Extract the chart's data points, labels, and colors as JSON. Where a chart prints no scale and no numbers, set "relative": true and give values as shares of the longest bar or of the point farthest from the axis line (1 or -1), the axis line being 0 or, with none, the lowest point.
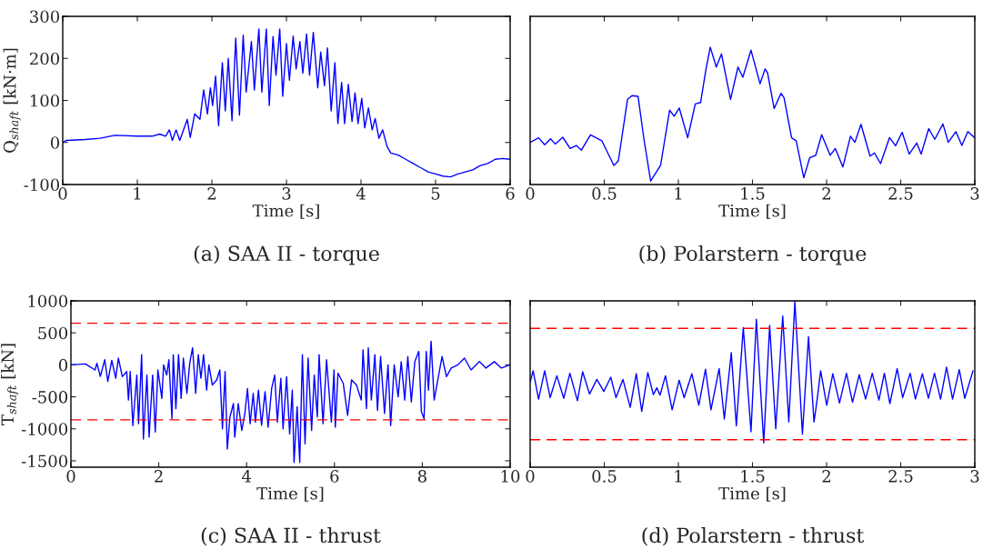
{
  "chart_data": [
    {
      "type": "line",
      "title": "(a) SAA II - torque",
      "xlabel": "Time [s]",
      "ylabel": "Q$_{shaft}$ [kN·m]",
      "xlim": [
        0,
        6
      ],
      "ylim": [
        -100,
        300
      ],
      "xticks": [
        0,
        1,
        2,
        3,
        4,
        5,
        6
      ],
      "yticks": [
        -100,
        0,
        100,
        200,
        300
      ],
      "grid": false,
      "legend": false,
      "series": [
        {
          "color": "#0000ff",
          "x": [
            0,
            0.05,
            0.3,
            0.5,
            0.7,
            1.0,
            1.2,
            1.3,
            1.38,
            1.43,
            1.47,
            1.52,
            1.57,
            1.67,
            1.71,
            1.77,
            1.84,
            1.89,
            1.94,
            1.98,
            2.01,
            2.05,
            2.09,
            2.14,
            2.18,
            2.22,
            2.27,
            2.32,
            2.37,
            2.42,
            2.46,
            2.53,
            2.57,
            2.63,
            2.67,
            2.73,
            2.77,
            2.82,
            2.86,
            2.91,
            2.95,
            3.0,
            3.04,
            3.09,
            3.13,
            3.18,
            3.22,
            3.27,
            3.31,
            3.36,
            3.42,
            3.46,
            3.51,
            3.55,
            3.6,
            3.65,
            3.69,
            3.74,
            3.78,
            3.83,
            3.88,
            3.92,
            3.96,
            4.01,
            4.05,
            4.1,
            4.15,
            4.19,
            4.24,
            4.29,
            4.35,
            4.4,
            4.5,
            4.6,
            4.7,
            4.8,
            4.9,
            5.0,
            5.1,
            5.2,
            5.3,
            5.4,
            5.5,
            5.6,
            5.7,
            5.8,
            5.9,
            6.0
          ],
          "values": [
            0,
            5,
            7,
            10,
            17,
            15,
            15,
            20,
            15,
            30,
            5,
            30,
            5,
            55,
            12,
            68,
            55,
            125,
            68,
            130,
            88,
            158,
            40,
            190,
            75,
            200,
            52,
            248,
            65,
            255,
            120,
            240,
            125,
            270,
            120,
            270,
            88,
            252,
            160,
            270,
            110,
            235,
            148,
            253,
            175,
            240,
            165,
            258,
            160,
            262,
            130,
            215,
            135,
            225,
            75,
            190,
            45,
            143,
            45,
            138,
            50,
            118,
            45,
            105,
            35,
            82,
            30,
            57,
            10,
            30,
            -10,
            -25,
            -30,
            -40,
            -50,
            -60,
            -70,
            -75,
            -80,
            -82,
            -75,
            -70,
            -65,
            -55,
            -50,
            -40,
            -38,
            -40
          ]
        }
      ]
    },
    {
      "type": "line",
      "title": "(b) Polarstern - torque",
      "xlabel": "Time [s]",
      "relative": true,
      "xlim": [
        0,
        3
      ],
      "xticks": [
        0,
        {
          "value": 0.5,
          "label": "0.5"
        },
        1,
        {
          "value": 1.5,
          "label": "1.5"
        },
        2,
        {
          "value": 2.5,
          "label": "2.5"
        },
        3
      ],
      "grid": false,
      "legend": false,
      "series": [
        {
          "color": "#0000ff",
          "x": [
            0,
            0.057,
            0.098,
            0.138,
            0.169,
            0.22,
            0.27,
            0.311,
            0.346,
            0.407,
            0.484,
            0.565,
            0.595,
            0.657,
            0.687,
            0.728,
            0.768,
            0.813,
            0.88,
            0.941,
            0.972,
            1.006,
            1.063,
            1.114,
            1.15,
            1.185,
            1.215,
            1.256,
            1.291,
            1.352,
            1.402,
            1.435,
            1.49,
            1.551,
            1.585,
            1.602,
            1.646,
            1.693,
            1.713,
            1.764,
            1.795,
            1.846,
            1.886,
            1.927,
            1.967,
            2.024,
            2.059,
            2.11,
            2.161,
            2.191,
            2.232,
            2.293,
            2.323,
            2.364,
            2.425,
            2.465,
            2.51,
            2.557,
            2.608,
            2.638,
            2.689,
            2.73,
            2.785,
            2.821,
            2.872,
            2.913,
            2.953,
            3.0
          ],
          "values": [
            0.306,
            0.34,
            0.289,
            0.333,
            0.295,
            0.344,
            0.262,
            0.284,
            0.25,
            0.362,
            0.318,
            0.139,
            0.172,
            0.62,
            0.647,
            0.642,
            0.329,
            0.025,
            0.139,
            0.541,
            0.497,
            0.557,
            0.34,
            0.586,
            0.597,
            0.831,
            1.0,
            0.855,
            0.951,
            0.62,
            0.855,
            0.781,
            0.978,
            0.734,
            0.841,
            0.812,
            0.553,
            0.664,
            0.631,
            0.34,
            0.318,
            0.049,
            0.195,
            0.213,
            0.362,
            0.213,
            0.262,
            0.128,
            0.352,
            0.307,
            0.438,
            0.207,
            0.23,
            0.152,
            0.342,
            0.282,
            0.38,
            0.221,
            0.302,
            0.221,
            0.407,
            0.329,
            0.441,
            0.307,
            0.385,
            0.284,
            0.385,
            0.34
          ]
        }
      ]
    },
    {
      "type": "line",
      "title": "(c) SAA II - thrust",
      "xlabel": "Time [s]",
      "ylabel": "T$_{shaft}$ [kN]",
      "xlim": [
        0,
        10
      ],
      "ylim": [
        -1600,
        1000
      ],
      "xticks": [
        0,
        2,
        4,
        6,
        8,
        10
      ],
      "yticks": [
        -1500,
        -1000,
        -500,
        0,
        500,
        1000
      ],
      "grid": false,
      "legend": false,
      "ref_lines": [
        {
          "axis": "y",
          "value": 650,
          "color": "#ff0000",
          "line_style": "dashed"
        },
        {
          "axis": "y",
          "value": -860,
          "color": "#ff0000",
          "line_style": "dashed"
        }
      ],
      "series": [
        {
          "color": "#0000ff",
          "x": [
            0,
            0.33,
            0.55,
            0.59,
            0.67,
            0.77,
            0.84,
            0.93,
            1.02,
            1.08,
            1.17,
            1.27,
            1.31,
            1.35,
            1.41,
            1.5,
            1.54,
            1.61,
            1.65,
            1.73,
            1.78,
            1.86,
            1.92,
            1.98,
            2.07,
            2.11,
            2.18,
            2.23,
            2.3,
            2.33,
            2.39,
            2.45,
            2.51,
            2.56,
            2.64,
            2.71,
            2.77,
            2.84,
            2.9,
            2.96,
            3.02,
            3.09,
            3.14,
            3.22,
            3.32,
            3.39,
            3.45,
            3.51,
            3.56,
            3.62,
            3.7,
            3.73,
            3.81,
            3.89,
            3.96,
            4.02,
            4.08,
            4.15,
            4.2,
            4.27,
            4.34,
            4.42,
            4.49,
            4.57,
            4.64,
            4.7,
            4.78,
            4.83,
            4.91,
            4.98,
            5.04,
            5.08,
            5.15,
            5.21,
            5.27,
            5.33,
            5.4,
            5.48,
            5.54,
            5.61,
            5.65,
            5.74,
            5.82,
            5.93,
            5.99,
            6.02,
            6.08,
            6.2,
            6.3,
            6.39,
            6.5,
            6.61,
            6.65,
            6.73,
            6.77,
            6.84,
            6.92,
            6.98,
            7.05,
            7.14,
            7.22,
            7.28,
            7.36,
            7.45,
            7.52,
            7.6,
            7.67,
            7.75,
            7.83,
            7.92,
            7.98,
            8.04,
            8.09,
            8.14,
            8.2,
            8.27,
            8.36,
            8.45,
            8.55,
            8.66,
            8.81,
            8.96,
            9.11,
            9.3,
            9.45,
            9.64,
            9.8,
            10
          ],
          "values": [
            0,
            15,
            -80,
            25,
            -180,
            80,
            -260,
            70,
            -210,
            105,
            -185,
            -105,
            -550,
            -105,
            -950,
            -160,
            -920,
            160,
            -1160,
            -160,
            -1130,
            -160,
            -1050,
            -80,
            -525,
            0,
            -160,
            80,
            -840,
            160,
            -685,
            160,
            -525,
            105,
            -445,
            50,
            265,
            -445,
            160,
            -210,
            160,
            -395,
            0,
            -315,
            -235,
            -80,
            -1000,
            -105,
            -1315,
            -815,
            -605,
            -1130,
            -605,
            -1025,
            -760,
            -370,
            -920,
            -445,
            -895,
            -395,
            -945,
            -420,
            -975,
            -370,
            -160,
            -895,
            -210,
            -1000,
            -185,
            -1080,
            -395,
            -1525,
            -655,
            -1525,
            160,
            -1235,
            105,
            -1025,
            -160,
            -815,
            160,
            -920,
            80,
            -895,
            -80,
            -975,
            -130,
            -290,
            -790,
            -235,
            -315,
            -550,
            235,
            -685,
            265,
            -550,
            160,
            -710,
            130,
            -760,
            0,
            -950,
            0,
            -500,
            50,
            -550,
            130,
            -580,
            50,
            210,
            -735,
            -840,
            210,
            -395,
            370,
            -550,
            -210,
            130,
            -185,
            -50,
            0,
            105,
            -80,
            50,
            -50,
            50,
            -50,
            0
          ]
        }
      ]
    },
    {
      "type": "line",
      "title": "(d) Polarstern - thrust",
      "xlabel": "Time [s]",
      "relative": true,
      "xlim": [
        0,
        3
      ],
      "xticks": [
        0,
        {
          "value": 0.5,
          "label": "0.5"
        },
        1,
        {
          "value": 1.5,
          "label": "1.5"
        },
        2,
        {
          "value": 2.5,
          "label": "2.5"
        },
        3
      ],
      "grid": false,
      "legend": false,
      "ref_lines": [
        {
          "axis": "y",
          "value": 0.838,
          "color": "#ff0000",
          "line_style": "dashed"
        },
        {
          "axis": "y",
          "value": 0.166,
          "color": "#ff0000",
          "line_style": "dashed"
        }
      ],
      "series": [
        {
          "color": "#0000ff",
          "x": [
            0,
            0.02,
            0.057,
            0.098,
            0.135,
            0.18,
            0.227,
            0.268,
            0.319,
            0.354,
            0.401,
            0.45,
            0.497,
            0.544,
            0.579,
            0.626,
            0.675,
            0.716,
            0.753,
            0.794,
            0.831,
            0.855,
            0.876,
            0.913,
            0.958,
            1.005,
            1.039,
            1.091,
            1.138,
            1.183,
            1.22,
            1.275,
            1.31,
            1.357,
            1.391,
            1.438,
            1.49,
            1.526,
            1.576,
            1.616,
            1.657,
            1.704,
            1.745,
            1.786,
            1.837,
            1.878,
            1.915,
            1.936,
            1.96,
            2.001,
            2.042,
            2.087,
            2.134,
            2.175,
            2.22,
            2.263,
            2.308,
            2.353,
            2.39,
            2.427,
            2.476,
            2.513,
            2.564,
            2.599,
            2.646,
            2.687,
            2.728,
            2.769,
            2.809,
            2.85,
            2.895,
            2.932,
            2.988
          ],
          "values": [
            0.512,
            0.582,
            0.411,
            0.582,
            0.42,
            0.552,
            0.416,
            0.567,
            0.401,
            0.576,
            0.442,
            0.53,
            0.457,
            0.543,
            0.42,
            0.53,
            0.361,
            0.564,
            0.337,
            0.571,
            0.438,
            0.479,
            0.435,
            0.552,
            0.346,
            0.525,
            0.42,
            0.564,
            0.374,
            0.591,
            0.346,
            0.595,
            0.291,
            0.692,
            0.25,
            0.843,
            0.214,
            0.893,
            0.147,
            0.856,
            0.232,
            0.912,
            0.273,
            1.0,
            0.199,
            0.788,
            0.273,
            0.405,
            0.582,
            0.374,
            0.564,
            0.387,
            0.567,
            0.392,
            0.558,
            0.411,
            0.567,
            0.405,
            0.567,
            0.383,
            0.595,
            0.42,
            0.567,
            0.411,
            0.564,
            0.416,
            0.567,
            0.411,
            0.604,
            0.411,
            0.589,
            0.416,
            0.582
          ]
        }
      ]
    }
  ]
}
